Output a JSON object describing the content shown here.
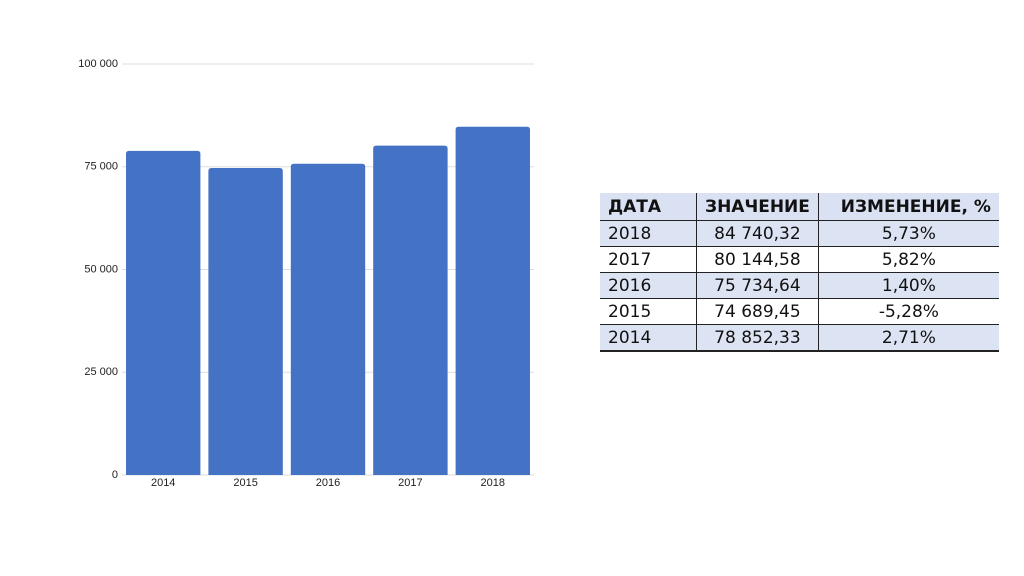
{
  "chart_data": {
    "type": "bar",
    "categories": [
      "2014",
      "2015",
      "2016",
      "2017",
      "2018"
    ],
    "values": [
      78852.33,
      74689.45,
      75734.64,
      80144.58,
      84740.32
    ],
    "color": "#4472c4",
    "ylim": [
      0,
      100000
    ],
    "yticks": [
      0,
      {
        "value": 25000,
        "label": "25 000"
      },
      {
        "value": 50000,
        "label": "50 000"
      },
      {
        "value": 75000,
        "label": "75 000"
      },
      {
        "value": 100000,
        "label": "100 000"
      }
    ],
    "grid": true
  },
  "table": {
    "header": [
      "ДАТА",
      "ЗНАЧЕНИЕ",
      "ИЗМЕНЕНИЕ, %"
    ],
    "rows": [
      [
        "2018",
        "84 740,32",
        "5,73%"
      ],
      [
        "2017",
        "80 144,58",
        "5,82%"
      ],
      [
        "2016",
        "75 734,64",
        "1,40%"
      ],
      [
        "2015",
        "74 689,45",
        "-5,28%"
      ],
      [
        "2014",
        "78 852,33",
        "2,71%"
      ]
    ]
  }
}
